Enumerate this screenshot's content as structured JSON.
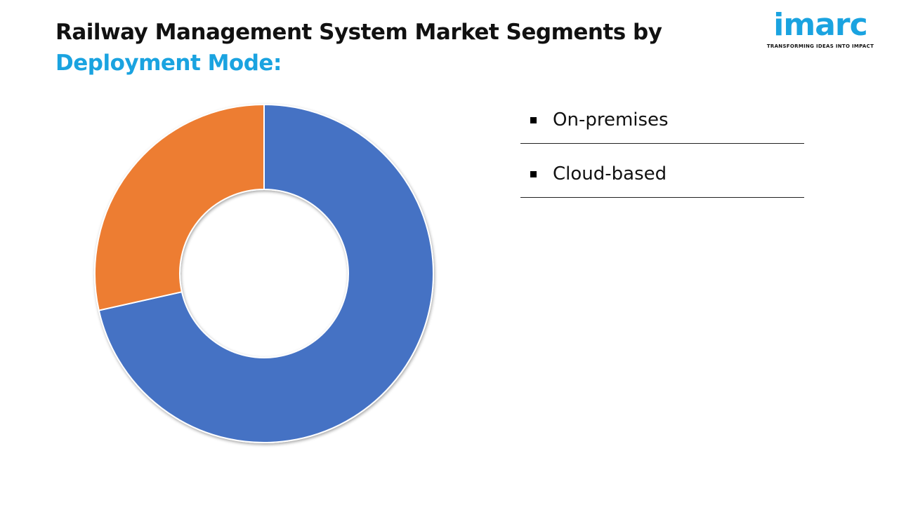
{
  "header": {
    "title_line1": "Railway Management System Market Segments by",
    "title_line2": "Deployment Mode:"
  },
  "logo": {
    "wordmark": "imarc",
    "tagline": "TRANSFORMING IDEAS INTO IMPACT",
    "color": "#1aa3e0"
  },
  "chart_data": {
    "type": "pie",
    "variant": "donut",
    "categories": [
      "On-premises",
      "Cloud-based"
    ],
    "values": [
      71.5,
      28.5
    ],
    "colors": [
      "#4472c4",
      "#ed7d31"
    ],
    "legend_position": "right"
  },
  "legend": {
    "items": [
      {
        "label": "On-premises"
      },
      {
        "label": "Cloud-based"
      }
    ]
  }
}
